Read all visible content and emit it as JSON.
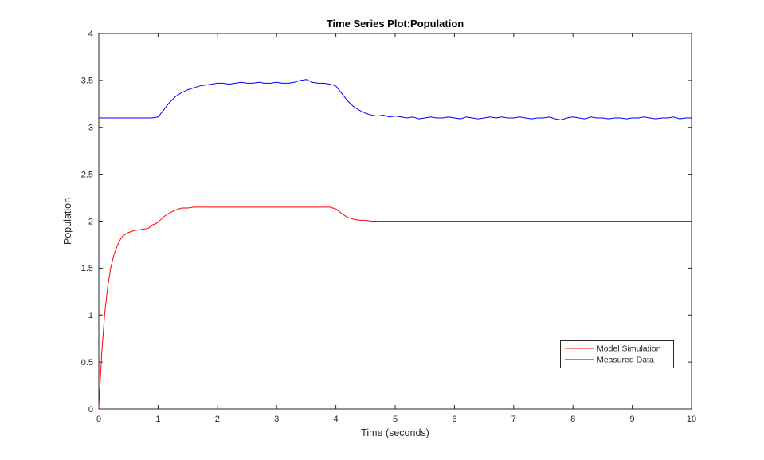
{
  "figure": {
    "background": "#ffffff"
  },
  "chart_data": {
    "type": "line",
    "title": "Time Series Plot:Population",
    "xlabel": "Time (seconds)",
    "ylabel": "Population",
    "xlim": [
      0,
      10
    ],
    "ylim": [
      0,
      4
    ],
    "xticks": [
      0,
      1,
      2,
      3,
      4,
      5,
      6,
      7,
      8,
      9,
      10
    ],
    "yticks": [
      0,
      0.5,
      1,
      1.5,
      2,
      2.5,
      3,
      3.5,
      4
    ],
    "ytick_labels": [
      "0",
      "0.5",
      "1",
      "1.5",
      "2",
      "2.5",
      "3",
      "3.5",
      "4"
    ],
    "grid": false,
    "axes_color": "#262626",
    "legend": {
      "position": "inside-right",
      "entries": [
        {
          "label": "Model Simulation",
          "color": "#ff0000"
        },
        {
          "label": "Measured Data",
          "color": "#0000ff"
        }
      ]
    },
    "series": [
      {
        "name": "Model Simulation",
        "color": "#ff0000",
        "x": [
          0,
          0.05,
          0.1,
          0.15,
          0.2,
          0.25,
          0.3,
          0.35,
          0.4,
          0.5,
          0.6,
          0.7,
          0.8,
          0.85,
          0.9,
          0.95,
          1.0,
          1.1,
          1.2,
          1.3,
          1.4,
          1.5,
          1.6,
          1.8,
          2.0,
          2.2,
          2.4,
          2.6,
          2.8,
          3.0,
          3.2,
          3.4,
          3.6,
          3.8,
          3.9,
          4.0,
          4.1,
          4.2,
          4.3,
          4.4,
          4.5,
          4.6,
          4.8,
          5.0,
          5.5,
          6.0,
          6.5,
          7.0,
          7.5,
          8.0,
          8.5,
          9.0,
          9.5,
          10.0
        ],
        "y": [
          0.02,
          0.6,
          1.02,
          1.3,
          1.5,
          1.63,
          1.72,
          1.79,
          1.84,
          1.88,
          1.9,
          1.91,
          1.92,
          1.93,
          1.96,
          1.97,
          1.99,
          2.05,
          2.09,
          2.12,
          2.14,
          2.14,
          2.15,
          2.15,
          2.15,
          2.15,
          2.15,
          2.15,
          2.15,
          2.15,
          2.15,
          2.15,
          2.15,
          2.15,
          2.15,
          2.13,
          2.08,
          2.04,
          2.02,
          2.01,
          2.01,
          2.0,
          2.0,
          2.0,
          2.0,
          2.0,
          2.0,
          2.0,
          2.0,
          2.0,
          2.0,
          2.0,
          2.0,
          2.0
        ]
      },
      {
        "name": "Measured Data",
        "color": "#0000ff",
        "x": [
          0,
          0.1,
          0.2,
          0.3,
          0.4,
          0.5,
          0.6,
          0.7,
          0.8,
          0.9,
          1.0,
          1.1,
          1.2,
          1.3,
          1.4,
          1.5,
          1.6,
          1.7,
          1.8,
          1.9,
          2.0,
          2.1,
          2.2,
          2.3,
          2.4,
          2.5,
          2.6,
          2.7,
          2.8,
          2.9,
          3.0,
          3.1,
          3.2,
          3.3,
          3.4,
          3.5,
          3.6,
          3.7,
          3.8,
          3.9,
          4.0,
          4.1,
          4.2,
          4.3,
          4.4,
          4.5,
          4.6,
          4.7,
          4.8,
          4.9,
          5.0,
          5.1,
          5.2,
          5.3,
          5.4,
          5.5,
          5.6,
          5.7,
          5.8,
          5.9,
          6.0,
          6.1,
          6.2,
          6.3,
          6.4,
          6.5,
          6.6,
          6.7,
          6.8,
          6.9,
          7.0,
          7.1,
          7.2,
          7.3,
          7.4,
          7.5,
          7.6,
          7.7,
          7.8,
          7.9,
          8.0,
          8.1,
          8.2,
          8.3,
          8.4,
          8.5,
          8.6,
          8.7,
          8.8,
          8.9,
          9.0,
          9.1,
          9.2,
          9.3,
          9.4,
          9.5,
          9.6,
          9.7,
          9.8,
          9.9,
          10.0
        ],
        "y": [
          3.1,
          3.1,
          3.1,
          3.1,
          3.1,
          3.1,
          3.1,
          3.1,
          3.1,
          3.1,
          3.11,
          3.19,
          3.27,
          3.33,
          3.37,
          3.4,
          3.42,
          3.44,
          3.45,
          3.46,
          3.47,
          3.47,
          3.46,
          3.47,
          3.48,
          3.47,
          3.47,
          3.48,
          3.47,
          3.47,
          3.48,
          3.47,
          3.47,
          3.48,
          3.5,
          3.51,
          3.48,
          3.47,
          3.47,
          3.46,
          3.44,
          3.36,
          3.28,
          3.22,
          3.18,
          3.15,
          3.13,
          3.12,
          3.13,
          3.11,
          3.12,
          3.11,
          3.1,
          3.11,
          3.09,
          3.1,
          3.11,
          3.1,
          3.1,
          3.11,
          3.1,
          3.09,
          3.11,
          3.1,
          3.09,
          3.1,
          3.11,
          3.1,
          3.11,
          3.1,
          3.1,
          3.11,
          3.1,
          3.09,
          3.1,
          3.1,
          3.11,
          3.09,
          3.08,
          3.1,
          3.11,
          3.1,
          3.09,
          3.11,
          3.1,
          3.1,
          3.09,
          3.1,
          3.1,
          3.09,
          3.1,
          3.1,
          3.11,
          3.1,
          3.09,
          3.1,
          3.1,
          3.11,
          3.09,
          3.1,
          3.1
        ]
      }
    ]
  }
}
